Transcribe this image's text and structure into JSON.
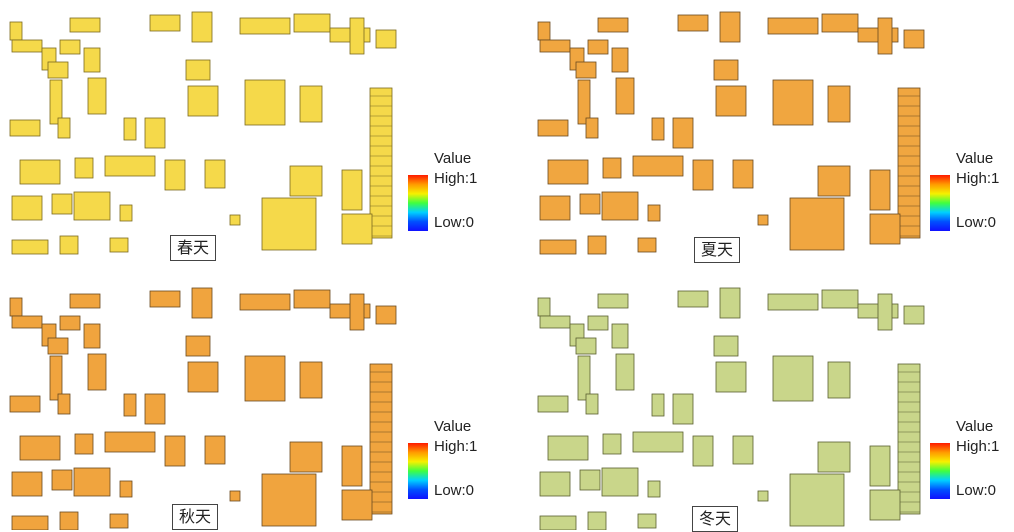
{
  "panels": [
    {
      "id": "spring",
      "label": "春天",
      "fill": "#f5d94a",
      "stroke": "#7a6a20",
      "shade": 0.0
    },
    {
      "id": "summer",
      "label": "夏天",
      "fill": "#f0a640",
      "stroke": "#6a4a20",
      "shade": 0.0
    },
    {
      "id": "autumn",
      "label": "秋天",
      "fill": "#f0a43e",
      "stroke": "#6a4a20",
      "shade": 0.0
    },
    {
      "id": "winter",
      "label": "冬天",
      "fill": "#c9d68a",
      "stroke": "#5a6030",
      "shade": 0.0
    }
  ],
  "legend": {
    "title": "Value",
    "high": "High:1",
    "low": "Low:0",
    "ramp_colors": [
      "#ff1a00",
      "#ff9a00",
      "#f7f000",
      "#40ff40",
      "#00d0ff",
      "#0050ff",
      "#1010ff"
    ]
  }
}
